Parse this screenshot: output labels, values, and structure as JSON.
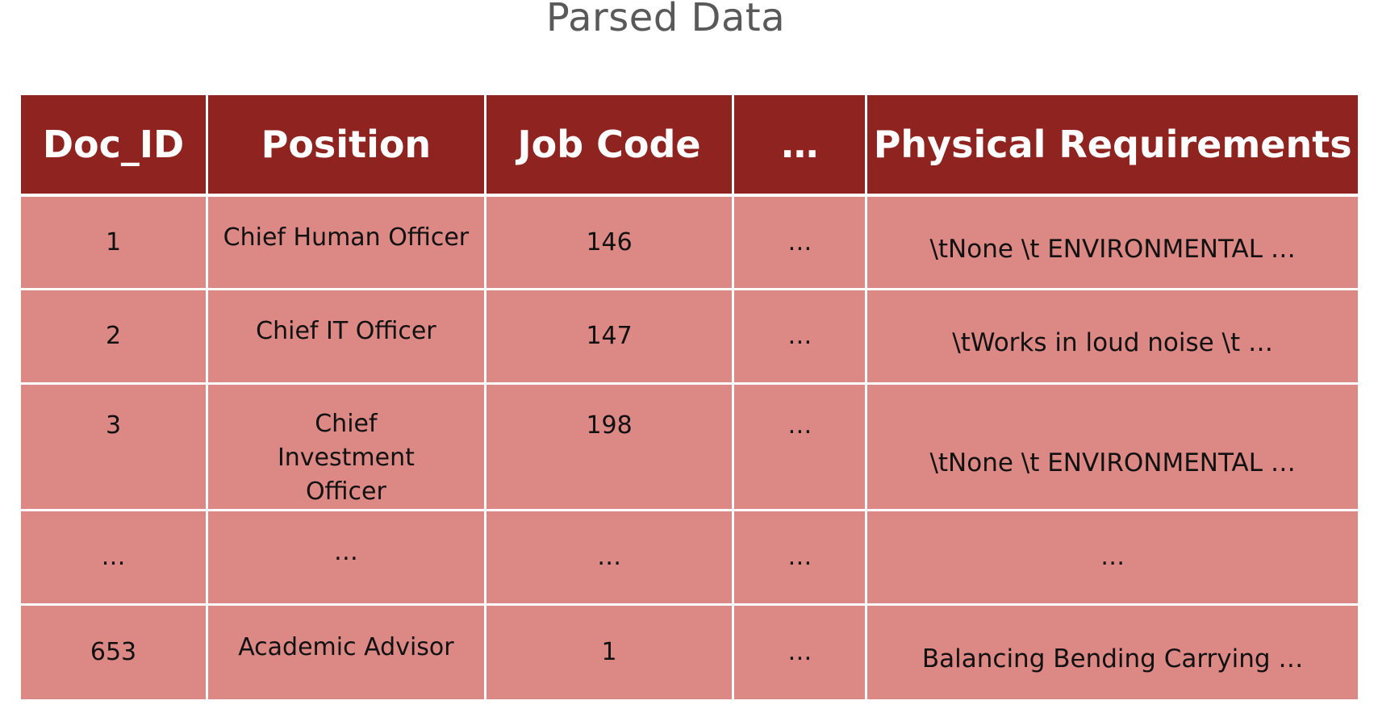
{
  "title": "Parsed Data",
  "table": {
    "headers": [
      "Doc_ID",
      "Position",
      "Job Code",
      "…",
      "Physical Requirements"
    ],
    "rows": [
      {
        "doc_id": "1",
        "position": "Chief Human Officer",
        "job_code": "146",
        "ellipsis": "…",
        "physical": "\\tNone  \\t ENVIRONMENTAL …"
      },
      {
        "doc_id": "2",
        "position": "Chief IT Officer",
        "job_code": "147",
        "ellipsis": "…",
        "physical": "\\tWorks in loud noise \\t …"
      },
      {
        "doc_id": "3",
        "position": "Chief Investment Officer",
        "job_code": "198",
        "ellipsis": "…",
        "physical": "\\tNone \\t ENVIRONMENTAL …"
      },
      {
        "doc_id": "…",
        "position": "…",
        "job_code": "…",
        "ellipsis": "…",
        "physical": "…"
      },
      {
        "doc_id": "653",
        "position": "Academic Advisor",
        "job_code": "1",
        "ellipsis": "…",
        "physical": "Balancing Bending Carrying …"
      }
    ]
  },
  "colors": {
    "header_bg": "#8f231f",
    "cell_bg": "#dc8985",
    "title_text": "#595959"
  }
}
